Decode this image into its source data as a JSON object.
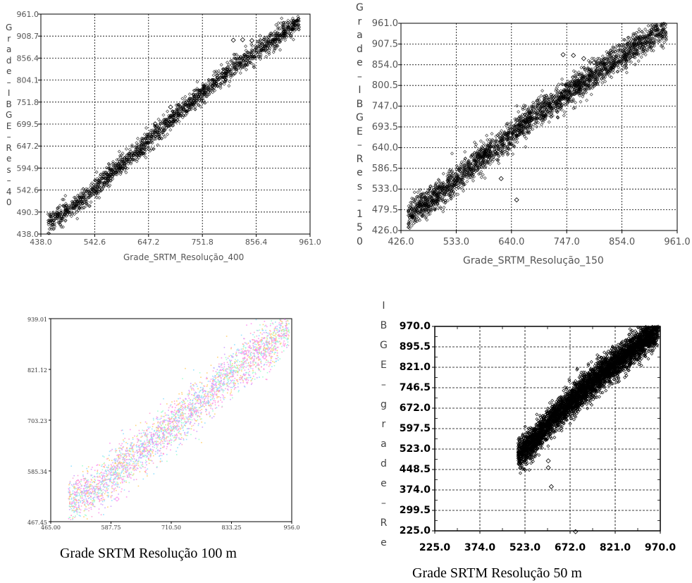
{
  "chart_data": [
    {
      "type": "scatter",
      "xlabel": "Grade_SRTM_Resolução_400",
      "ylabel": "Grade_IBGE_Res_40",
      "xlim": [
        438.0,
        961.0
      ],
      "ylim": [
        438.0,
        961.0
      ],
      "x_ticks": [
        "438.0",
        "542.6",
        "647.2",
        "751.8",
        "856.4",
        "961.0"
      ],
      "y_ticks": [
        "438.0",
        "490.3",
        "542.6",
        "594.9",
        "647.2",
        "699.5",
        "751.8",
        "804.1",
        "856.4",
        "908.7",
        "961.0"
      ],
      "grid": true,
      "marker_color": "#000000",
      "series": [
        {
          "trend": [
            [
              452,
              460
            ],
            [
              520,
              520
            ],
            [
              580,
              590
            ],
            [
              640,
              650
            ],
            [
              700,
              720
            ],
            [
              760,
              780
            ],
            [
              820,
              840
            ],
            [
              880,
              890
            ],
            [
              940,
              945
            ]
          ],
          "spread": 26,
          "outliers": [
            [
              812,
              899
            ],
            [
              830,
              900
            ],
            [
              848,
              898
            ],
            [
              690,
              740
            ],
            [
              700,
              720
            ],
            [
              660,
              700
            ]
          ]
        }
      ]
    },
    {
      "type": "scatter",
      "xlabel": "Grade_SRTM_Resolução_150",
      "ylabel": "Grade_IBGE_Res_150",
      "xlim": [
        426.0,
        961.0
      ],
      "ylim": [
        426.0,
        961.0
      ],
      "x_ticks": [
        "426.0",
        "533.0",
        "640.0",
        "747.0",
        "854.0",
        "961.0"
      ],
      "y_ticks": [
        "426.0",
        "479.5",
        "533.0",
        "586.5",
        "640.0",
        "693.5",
        "747.0",
        "800.5",
        "854.0",
        "907.5",
        "961.0"
      ],
      "grid": true,
      "marker_color": "#000000",
      "series": [
        {
          "trend": [
            [
              440,
              465
            ],
            [
              500,
              520
            ],
            [
              560,
              590
            ],
            [
              620,
              650
            ],
            [
              680,
              720
            ],
            [
              740,
              770
            ],
            [
              800,
              830
            ],
            [
              860,
              880
            ],
            [
              940,
              955
            ]
          ],
          "spread": 40,
          "outliers": [
            [
              740,
              880
            ],
            [
              760,
              878
            ],
            [
              780,
              870
            ],
            [
              800,
              860
            ],
            [
              650,
              505
            ],
            [
              620,
              560
            ]
          ]
        }
      ]
    },
    {
      "type": "scatter",
      "xlabel": "",
      "ylabel": "",
      "xlim": [
        465.0,
        956.0
      ],
      "ylim": [
        467.45,
        939.01
      ],
      "x_ticks": [
        "465.00",
        "587.75",
        "710.50",
        "833.25",
        "956.0"
      ],
      "y_ticks": [
        "467.45",
        "585.34",
        "703.23",
        "821.12",
        "939.01"
      ],
      "grid": false,
      "marker_colors": [
        "#ff88ee",
        "#ff99cc",
        "#cc99ff",
        "#88ddff",
        "#ffcc66",
        "#99ffcc"
      ],
      "series": [
        {
          "trend": [
            [
              500,
              510
            ],
            [
              560,
              550
            ],
            [
              620,
              610
            ],
            [
              680,
              660
            ],
            [
              740,
              720
            ],
            [
              800,
              780
            ],
            [
              860,
              840
            ],
            [
              920,
              890
            ],
            [
              950,
              930
            ]
          ],
          "spread": 60,
          "outliers": [
            [
              520,
              560
            ],
            [
              600,
              520
            ],
            [
              860,
              860
            ],
            [
              900,
              850
            ]
          ]
        }
      ]
    },
    {
      "type": "scatter",
      "xlabel": "",
      "ylabel": "IBGE_grade_Re",
      "xlim": [
        225.0,
        970.0
      ],
      "ylim": [
        225.0,
        970.0
      ],
      "x_ticks": [
        "225.0",
        "374.0",
        "523.0",
        "672.0",
        "821.0",
        "970.0"
      ],
      "y_ticks": [
        "225.0",
        "299.5",
        "374.0",
        "448.5",
        "523.0",
        "597.5",
        "672.0",
        "746.5",
        "821.0",
        "895.5",
        "970.0"
      ],
      "grid": true,
      "marker_color": "#000000",
      "series": [
        {
          "trend": [
            [
              500,
              500
            ],
            [
              560,
              560
            ],
            [
              620,
              640
            ],
            [
              700,
              720
            ],
            [
              780,
              800
            ],
            [
              860,
              870
            ],
            [
              940,
              940
            ],
            [
              965,
              970
            ]
          ],
          "spread": 60,
          "outliers": [
            [
              610,
              386
            ],
            [
              690,
              222
            ],
            [
              600,
              455
            ],
            [
              600,
              480
            ]
          ]
        }
      ]
    }
  ],
  "captions": {
    "c3": "Grade SRTM Resolução 100 m",
    "c4": "Grade SRTM Resolução 50 m"
  }
}
